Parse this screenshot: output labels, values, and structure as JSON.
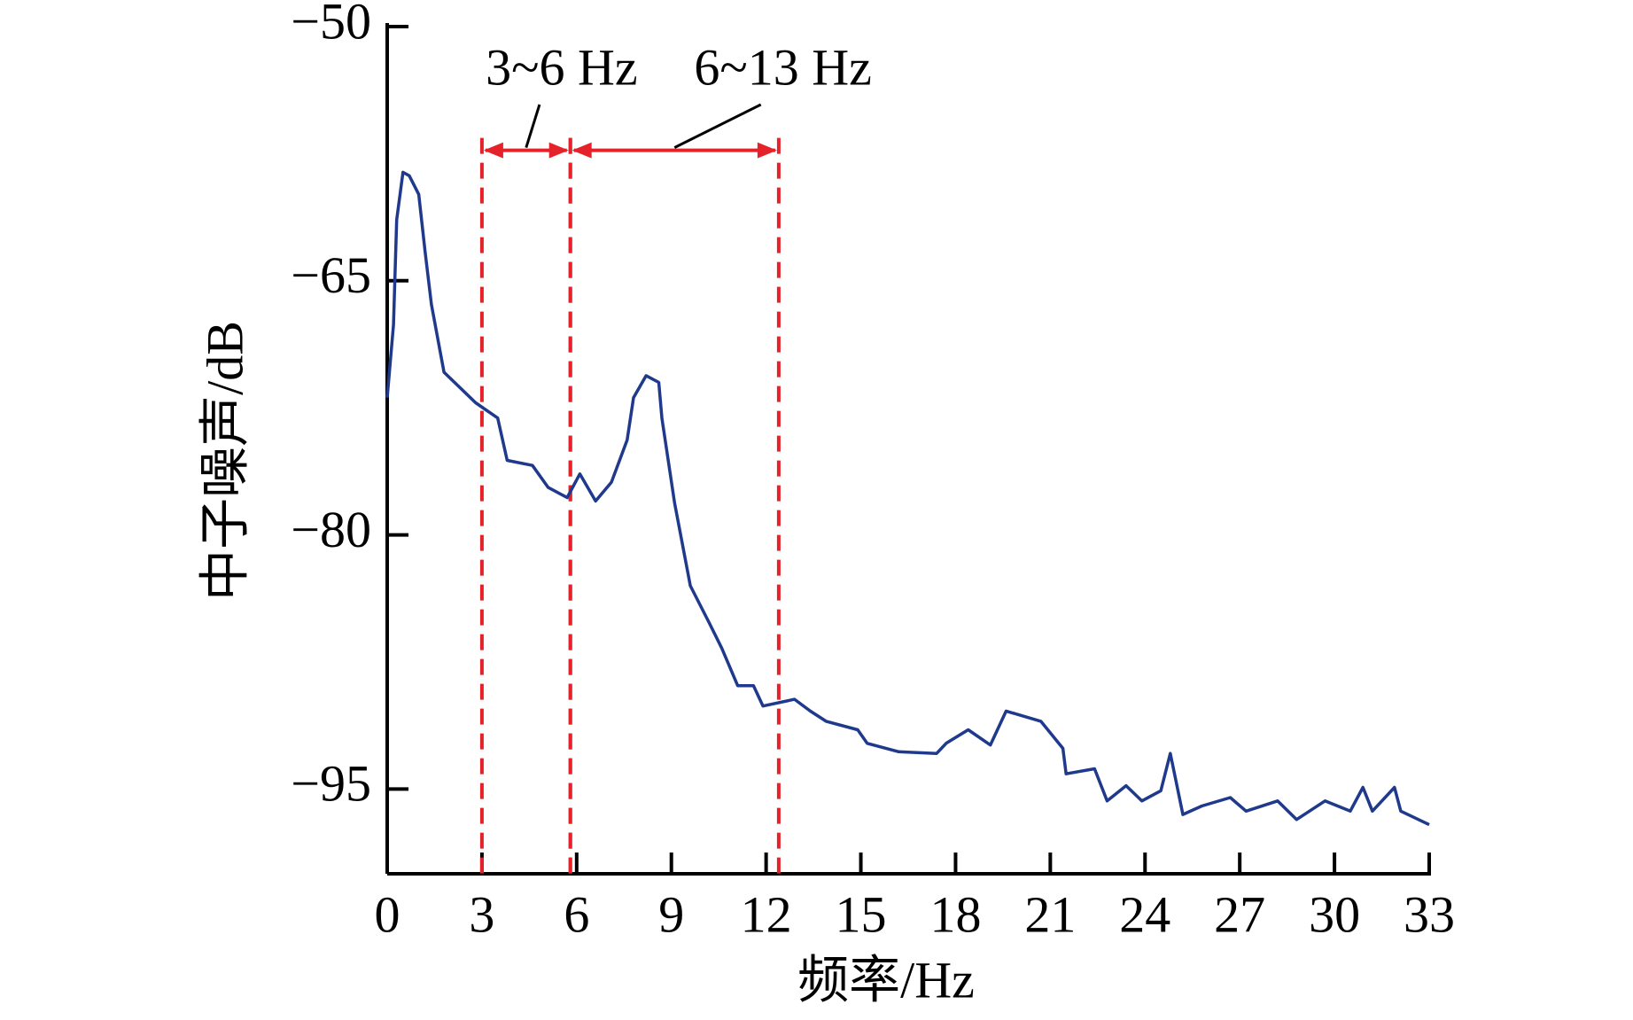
{
  "chart_data": {
    "type": "line",
    "x_label": "频率/Hz",
    "y_label": "中子噪声/dB",
    "color": "#1f3a8c",
    "x": [
      0,
      0.2,
      0.3,
      0.5,
      0.7,
      1.0,
      1.2,
      1.4,
      1.8,
      2.8,
      3.5,
      3.8,
      4.6,
      5.1,
      5.7,
      6.1,
      6.6,
      7.1,
      7.6,
      7.8,
      8.2,
      8.6,
      8.7,
      9.1,
      9.6,
      10.2,
      10.6,
      11.1,
      11.6,
      11.9,
      12.9,
      13.4,
      13.9,
      14.9,
      15.2,
      16.2,
      17.4,
      17.7,
      18.4,
      19.1,
      19.6,
      20.7,
      21.4,
      21.5,
      22.4,
      22.8,
      23.4,
      23.9,
      24.5,
      24.8,
      25.2,
      25.8,
      26.7,
      27.2,
      28.2,
      28.8,
      29.7,
      30.5,
      30.9,
      31.2,
      31.9,
      32.1,
      33
    ],
    "values": [
      -71.9,
      -67.6,
      -61.4,
      -58.6,
      -58.8,
      -59.9,
      -63.3,
      -66.4,
      -70.4,
      -72.2,
      -73.1,
      -75.6,
      -75.9,
      -77.2,
      -77.8,
      -76.4,
      -78.0,
      -76.9,
      -74.4,
      -71.9,
      -70.6,
      -71.0,
      -73.1,
      -78.1,
      -83.0,
      -85.2,
      -86.7,
      -88.9,
      -88.9,
      -90.1,
      -89.7,
      -90.4,
      -91.0,
      -91.5,
      -92.3,
      -92.8,
      -92.9,
      -92.3,
      -91.5,
      -92.4,
      -90.4,
      -91.0,
      -92.6,
      -94.1,
      -93.8,
      -95.7,
      -94.8,
      -95.7,
      -95.1,
      -92.9,
      -96.5,
      -96.0,
      -95.5,
      -96.3,
      -95.7,
      -96.8,
      -95.7,
      -96.3,
      -94.9,
      -96.3,
      -94.9,
      -96.3,
      -97.1
    ],
    "xlim": [
      0,
      33
    ],
    "xticks": [
      0,
      3,
      6,
      9,
      12,
      15,
      18,
      21,
      24,
      27,
      30,
      33
    ],
    "ylim": [
      -100,
      -50
    ],
    "yticks": [
      {
        "value": -50,
        "label": "−50"
      },
      {
        "value": -65,
        "label": "−65"
      },
      {
        "value": -80,
        "label": "−80"
      },
      {
        "value": -95,
        "label": "−95"
      }
    ],
    "band_color": "#e52229",
    "band_y": -57.3,
    "bands": [
      {
        "label": "3~6 Hz",
        "x0": 3,
        "x1": 5.8
      },
      {
        "label": "6~13 Hz",
        "x0": 5.8,
        "x1": 12.4
      }
    ]
  }
}
